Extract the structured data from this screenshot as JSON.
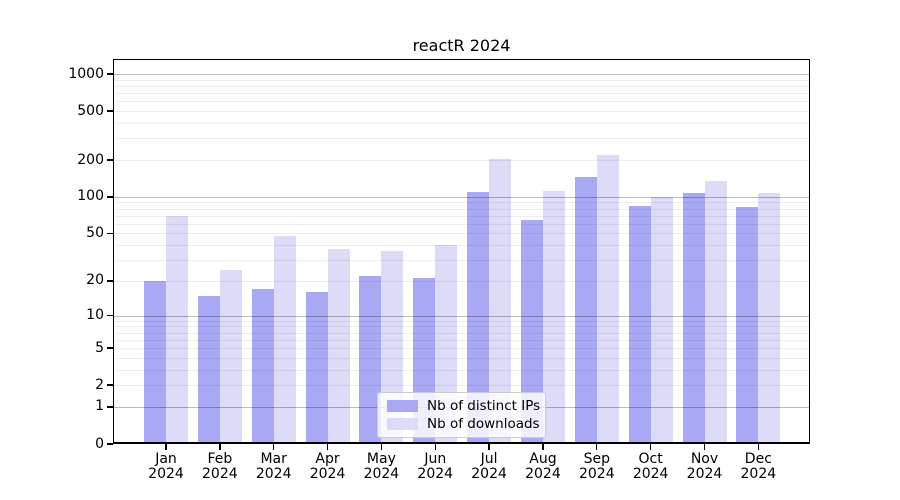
{
  "chart_data": {
    "type": "bar",
    "title": "reactR 2024",
    "x_year": "2024",
    "categories": [
      "Jan",
      "Feb",
      "Mar",
      "Apr",
      "May",
      "Jun",
      "Jul",
      "Aug",
      "Sep",
      "Oct",
      "Nov",
      "Dec"
    ],
    "series": [
      {
        "name": "Nb of distinct IPs",
        "color": "#a8a8f5",
        "values": [
          20,
          15,
          17,
          16,
          22,
          21,
          109,
          65,
          145,
          84,
          108,
          82
        ]
      },
      {
        "name": "Nb of downloads",
        "color": "#dcdcf8",
        "values": [
          69,
          25,
          48,
          37,
          36,
          40,
          203,
          112,
          220,
          100,
          134,
          108
        ]
      }
    ],
    "y_axis": {
      "scale": "log1p",
      "tick_values": [
        0,
        1,
        2,
        5,
        10,
        20,
        50,
        100,
        200,
        500,
        1000
      ],
      "tick_labels": [
        "0",
        "1",
        "2",
        "5",
        "10",
        "20",
        "50",
        "100",
        "200",
        "500",
        "1000"
      ],
      "major_grid_values": [
        1,
        10,
        100,
        1000
      ],
      "minor_grid_values": [
        2,
        3,
        4,
        5,
        6,
        7,
        8,
        9,
        20,
        30,
        40,
        50,
        60,
        70,
        80,
        90,
        200,
        300,
        400,
        500,
        600,
        700,
        800,
        900
      ],
      "range_top": 1324
    },
    "legend": {
      "position": "lower center",
      "entries": [
        "Nb of distinct IPs",
        "Nb of downloads"
      ]
    },
    "grid": true
  },
  "colors": {
    "bar_distinct_ips": "#a8a8f5",
    "bar_downloads": "#dcdcf8",
    "axis": "#000000",
    "background": "#ffffff"
  }
}
